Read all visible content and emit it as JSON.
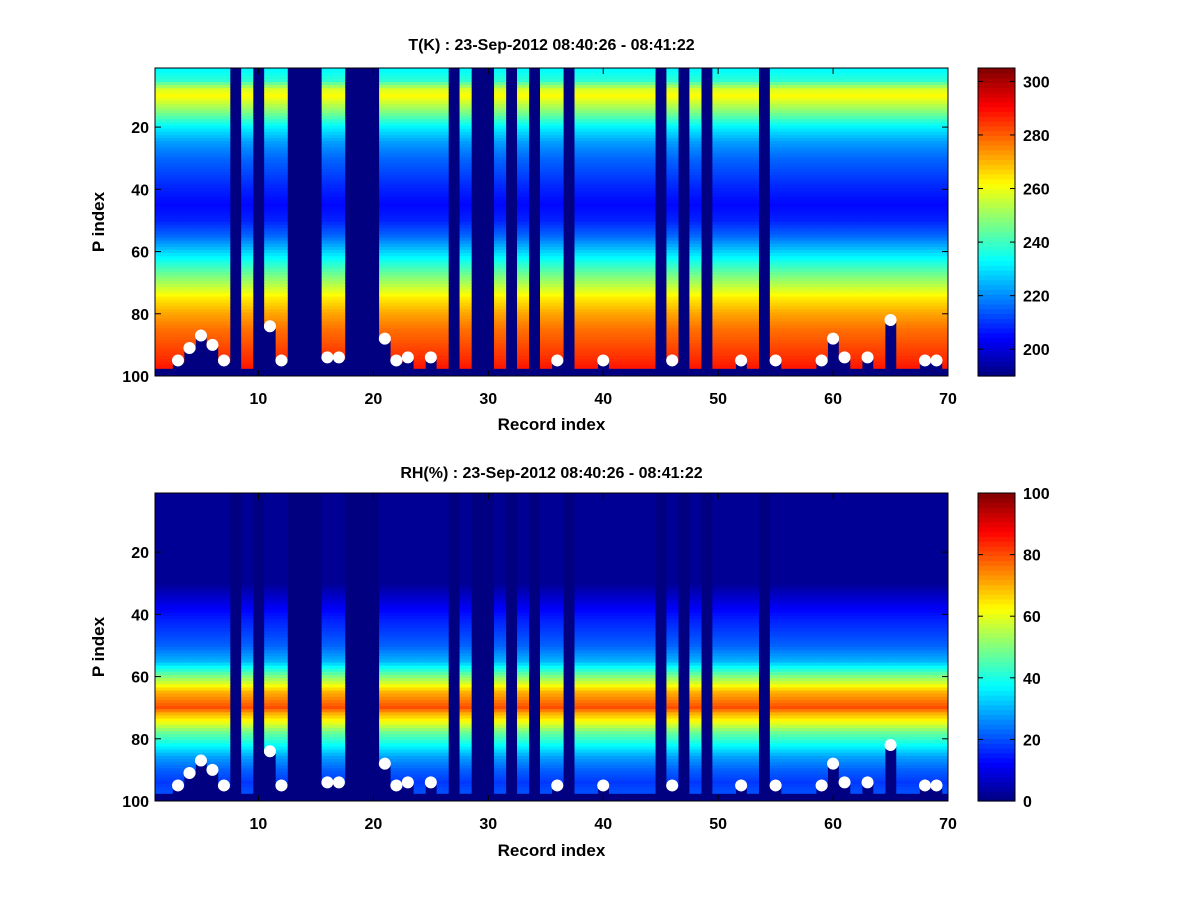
{
  "chart_data": [
    {
      "type": "heatmap",
      "title": "T(K) : 23-Sep-2012 08:40:26 - 08:41:22",
      "xlabel": "Record index",
      "ylabel": "P index",
      "xlim": [
        1,
        70
      ],
      "ylim": [
        1,
        100
      ],
      "y_reversed": true,
      "xticks": [
        "10",
        "20",
        "30",
        "40",
        "50",
        "60",
        "70"
      ],
      "yticks": [
        "20",
        "40",
        "60",
        "80",
        "100"
      ],
      "colormap": "jet",
      "colorbar": {
        "min": 190,
        "max": 305,
        "ticks": [
          "200",
          "220",
          "240",
          "260",
          "280",
          "300"
        ]
      },
      "gap_records": [
        8,
        10,
        13,
        14,
        15,
        18,
        19,
        20,
        27,
        29,
        30,
        32,
        34,
        37,
        45,
        47,
        49,
        54
      ],
      "profile": {
        "p": [
          1,
          5,
          8,
          10,
          15,
          20,
          25,
          30,
          35,
          40,
          45,
          50,
          55,
          60,
          65,
          70,
          75,
          80,
          85,
          90,
          95,
          97
        ],
        "values": [
          232,
          238,
          258,
          262,
          248,
          232,
          222,
          216,
          212,
          208,
          205,
          208,
          216,
          228,
          240,
          252,
          264,
          272,
          278,
          282,
          286,
          288
        ]
      },
      "bottom_markers": {
        "x": [
          3,
          4,
          5,
          6,
          7,
          11,
          12,
          16,
          17,
          21,
          22,
          23,
          25,
          36,
          40,
          46,
          52,
          55,
          59,
          60,
          61,
          63,
          65,
          68,
          69
        ],
        "p": [
          95,
          91,
          87,
          90,
          95,
          84,
          95,
          94,
          94,
          88,
          95,
          94,
          94,
          95,
          95,
          95,
          95,
          95,
          95,
          88,
          94,
          94,
          82,
          95,
          95
        ]
      }
    },
    {
      "type": "heatmap",
      "title": "RH(%) : 23-Sep-2012 08:40:26 - 08:41:22",
      "xlabel": "Record index",
      "ylabel": "P index",
      "xlim": [
        1,
        70
      ],
      "ylim": [
        1,
        100
      ],
      "y_reversed": true,
      "xticks": [
        "10",
        "20",
        "30",
        "40",
        "50",
        "60",
        "70"
      ],
      "yticks": [
        "20",
        "40",
        "60",
        "80",
        "100"
      ],
      "colormap": "jet",
      "colorbar": {
        "min": 0,
        "max": 100,
        "ticks": [
          "0",
          "20",
          "40",
          "60",
          "80",
          "100"
        ]
      },
      "gap_records": [
        8,
        10,
        13,
        14,
        15,
        18,
        19,
        20,
        27,
        29,
        30,
        32,
        34,
        37,
        45,
        47,
        49,
        54
      ],
      "profile": {
        "p": [
          1,
          30,
          35,
          40,
          45,
          50,
          55,
          58,
          62,
          65,
          68,
          70,
          72,
          75,
          78,
          82,
          86,
          90,
          94,
          97
        ],
        "values": [
          2,
          2,
          8,
          14,
          18,
          22,
          30,
          42,
          58,
          70,
          76,
          80,
          70,
          60,
          48,
          38,
          28,
          22,
          18,
          20
        ]
      },
      "bottom_markers": {
        "x": [
          3,
          4,
          5,
          6,
          7,
          11,
          12,
          16,
          17,
          21,
          22,
          23,
          25,
          36,
          40,
          46,
          52,
          55,
          59,
          60,
          61,
          63,
          65,
          68,
          69
        ],
        "p": [
          95,
          91,
          87,
          90,
          95,
          84,
          95,
          94,
          94,
          88,
          95,
          94,
          94,
          95,
          95,
          95,
          95,
          95,
          95,
          88,
          94,
          94,
          82,
          95,
          95
        ]
      }
    }
  ]
}
